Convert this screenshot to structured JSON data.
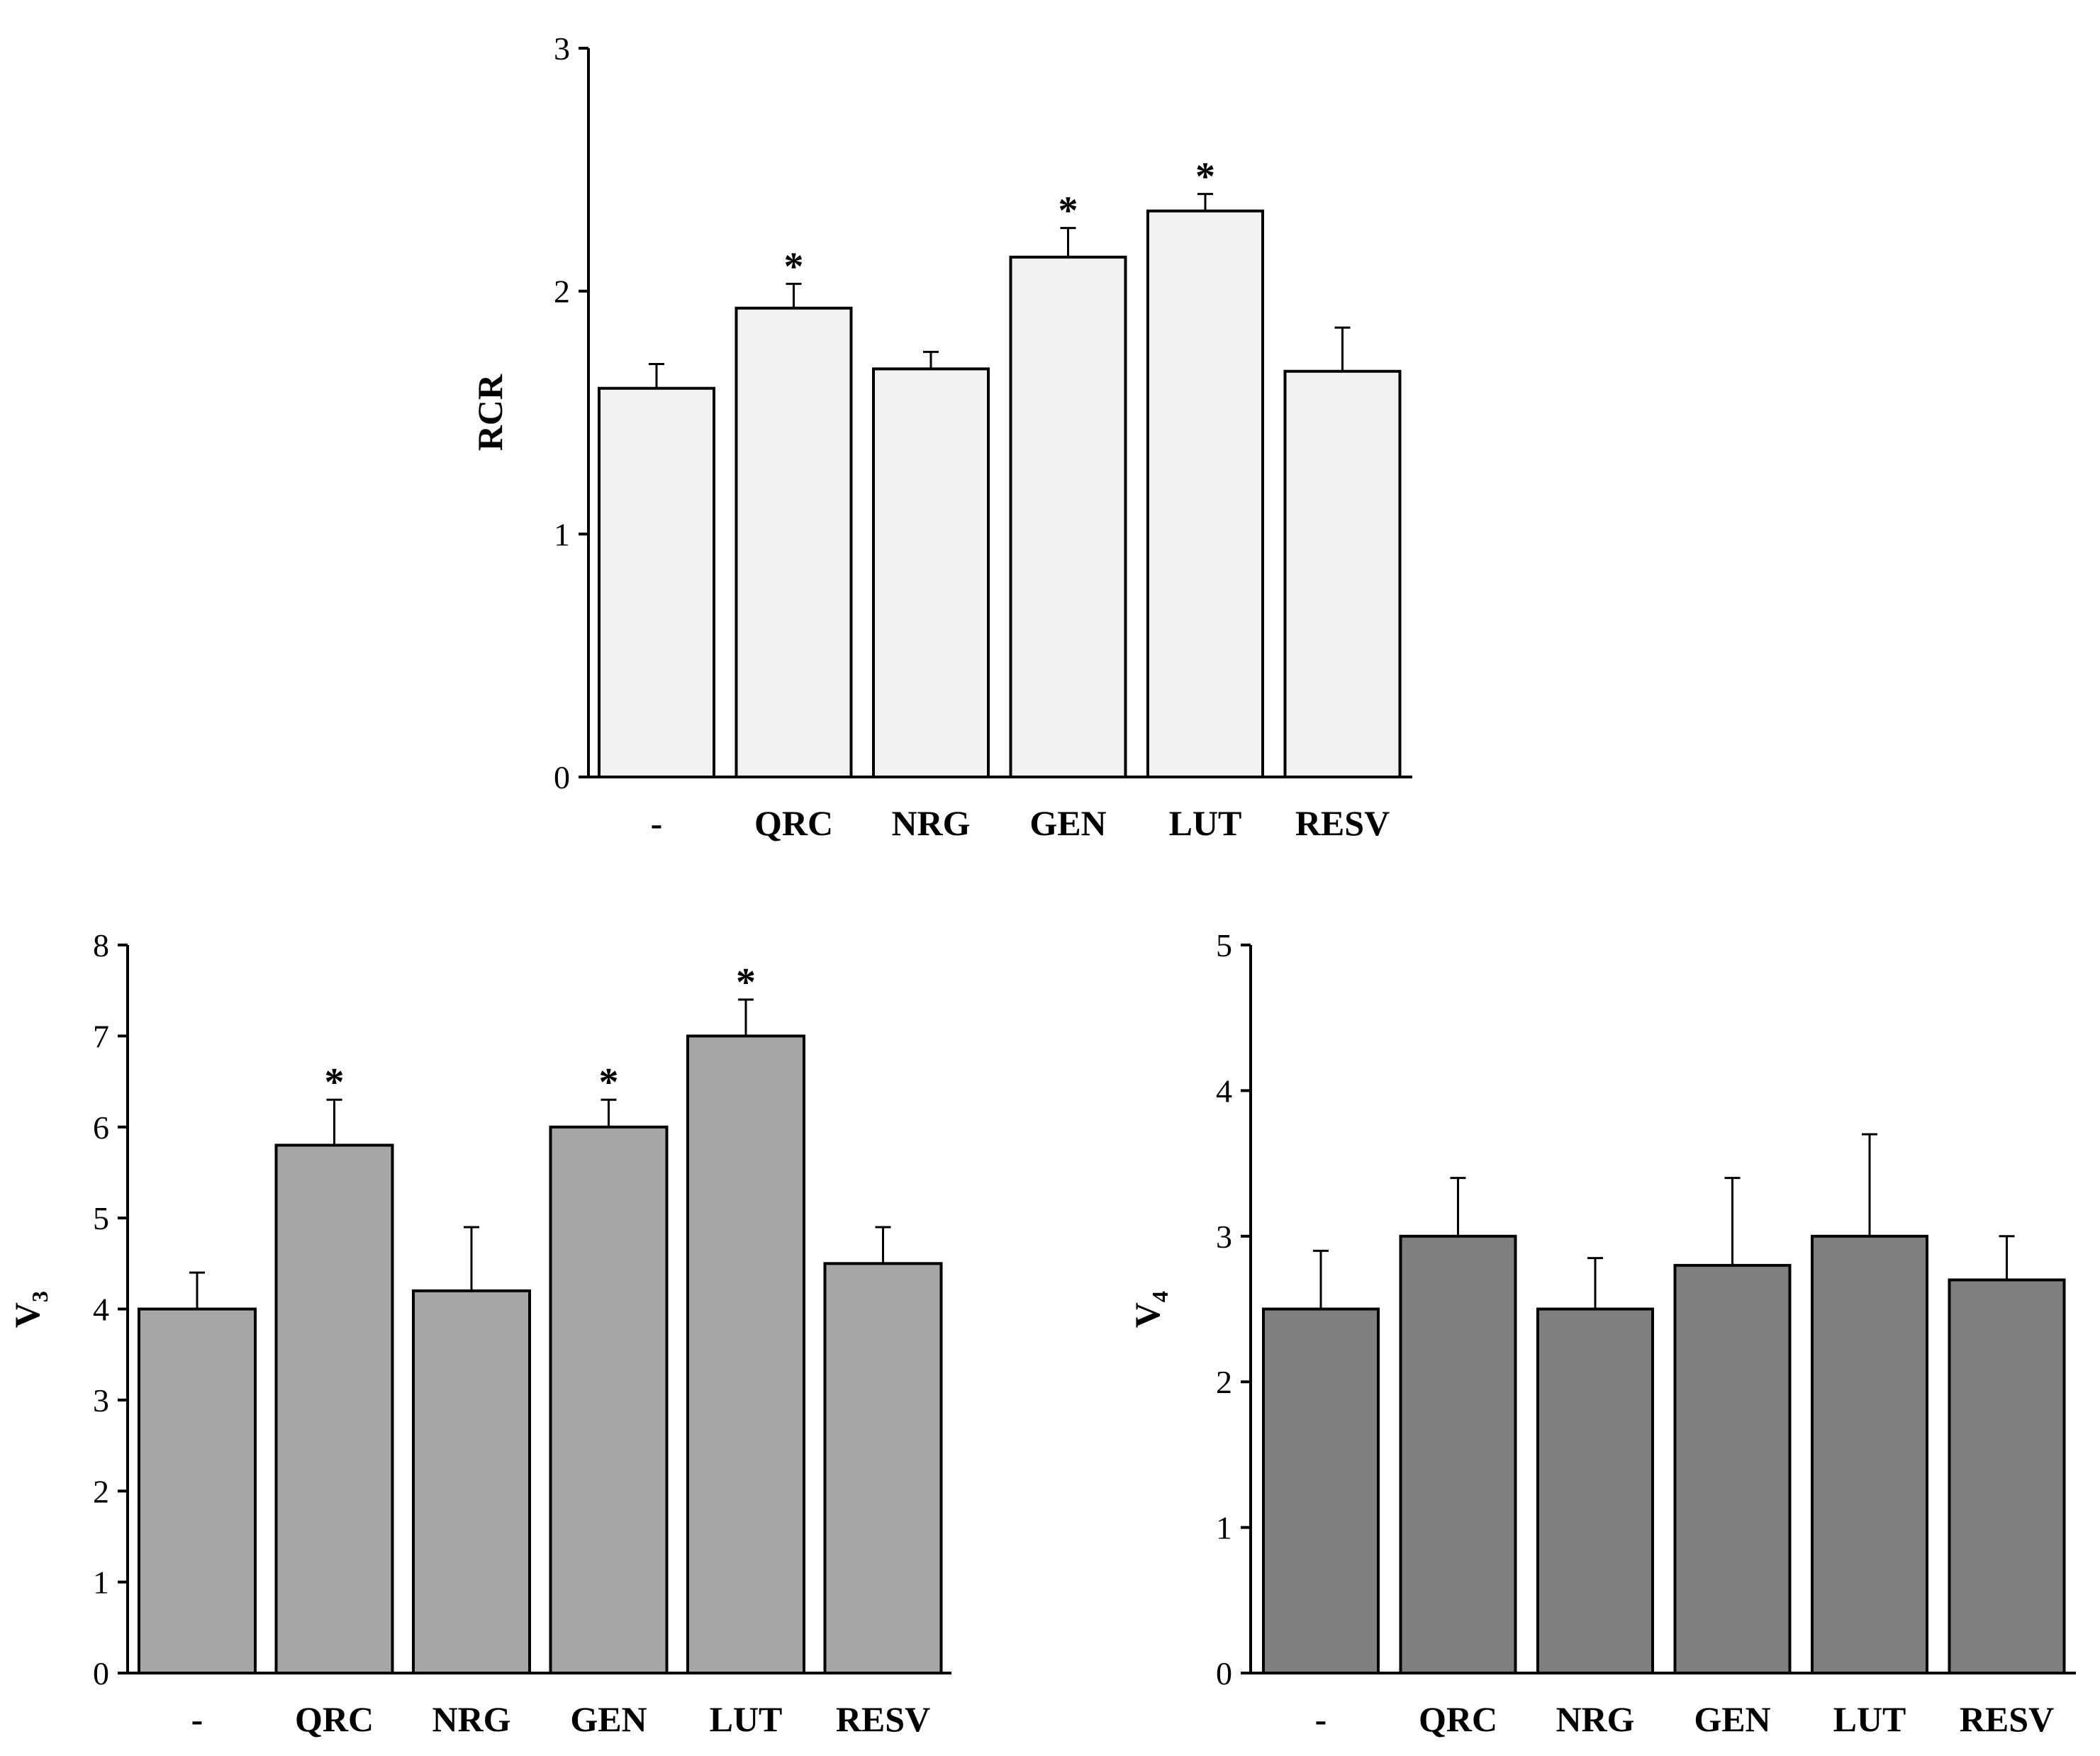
{
  "chart_data": [
    {
      "id": "rcr",
      "type": "bar",
      "categories": [
        "-",
        "QRC",
        "NRG",
        "GEN",
        "LUT",
        "RESV"
      ],
      "values": [
        1.6,
        1.93,
        1.68,
        2.14,
        2.33,
        1.67
      ],
      "errors": [
        0.1,
        0.1,
        0.07,
        0.12,
        0.07,
        0.18
      ],
      "significant": [
        false,
        true,
        false,
        true,
        true,
        false
      ],
      "significance_marker": "*",
      "ylabel": "RCR",
      "ylabel_sub": "",
      "ylim": [
        0,
        3
      ],
      "yticks": [
        "0",
        "1",
        "2",
        "3"
      ],
      "bar_color": "#f2f2f2"
    },
    {
      "id": "v3",
      "type": "bar",
      "categories": [
        "-",
        "QRC",
        "NRG",
        "GEN",
        "LUT",
        "RESV"
      ],
      "values": [
        4.0,
        5.8,
        4.2,
        6.0,
        7.0,
        4.5
      ],
      "errors": [
        0.4,
        0.5,
        0.7,
        0.3,
        0.4,
        0.4
      ],
      "significant": [
        false,
        true,
        false,
        true,
        true,
        false
      ],
      "significance_marker": "*",
      "ylabel": "V",
      "ylabel_sub": "3",
      "ylim": [
        0,
        8
      ],
      "yticks": [
        "0",
        "1",
        "2",
        "3",
        "4",
        "5",
        "6",
        "7",
        "8"
      ],
      "bar_color": "#a6a6a6"
    },
    {
      "id": "v4",
      "type": "bar",
      "categories": [
        "-",
        "QRC",
        "NRG",
        "GEN",
        "LUT",
        "RESV"
      ],
      "values": [
        2.5,
        3.0,
        2.5,
        2.8,
        3.0,
        2.7
      ],
      "errors": [
        0.4,
        0.4,
        0.35,
        0.6,
        0.7,
        0.3
      ],
      "significant": [
        false,
        false,
        false,
        false,
        false,
        false
      ],
      "significance_marker": "*",
      "ylabel": "V",
      "ylabel_sub": "4",
      "ylim": [
        0,
        5
      ],
      "yticks": [
        "0",
        "1",
        "2",
        "3",
        "4",
        "5"
      ],
      "bar_color": "#7f7f7f"
    }
  ]
}
